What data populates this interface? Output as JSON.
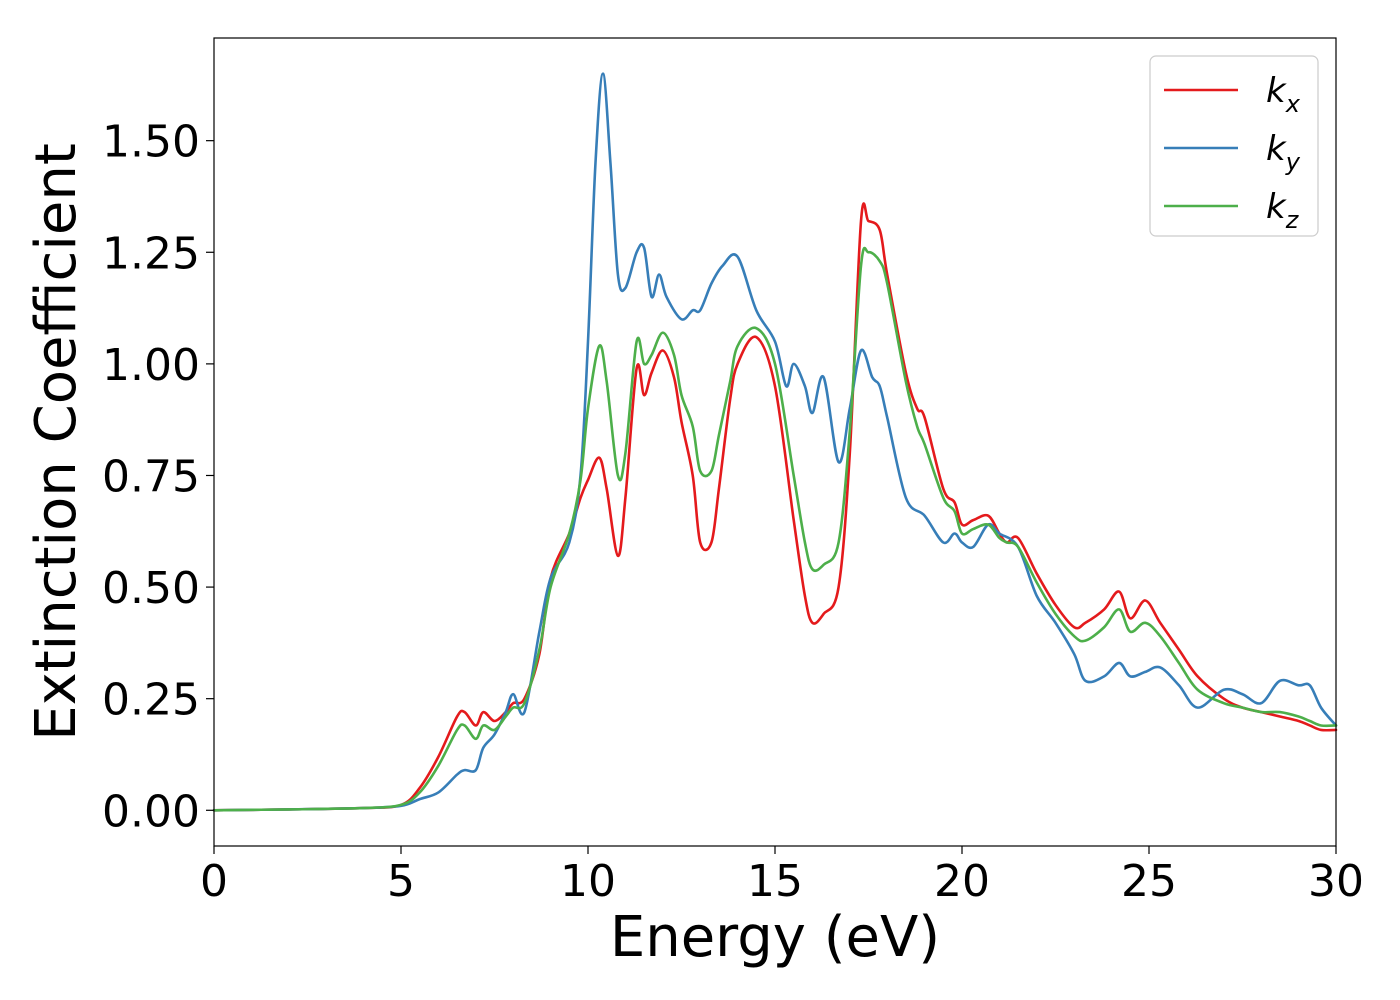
{
  "chart_data": {
    "type": "line",
    "title": "",
    "xlabel": "Energy (eV)",
    "ylabel": "Extinction Coefficient",
    "xlim": [
      0,
      30
    ],
    "ylim": [
      -0.08,
      1.73
    ],
    "xticks": [
      0,
      5,
      10,
      15,
      20,
      25,
      30
    ],
    "xtick_labels": [
      "0",
      "5",
      "10",
      "15",
      "20",
      "25",
      "30"
    ],
    "yticks": [
      0,
      0.25,
      0.5,
      0.75,
      1.0,
      1.25,
      1.5
    ],
    "ytick_labels": [
      "0.00",
      "0.25",
      "0.50",
      "0.75",
      "1.00",
      "1.25",
      "1.50"
    ],
    "grid": false,
    "legend_position": "top-right",
    "series": [
      {
        "name": "k_x",
        "base": "k",
        "sub": "x",
        "color": "#e41a1c",
        "x": [
          0,
          2,
          4,
          5,
          5.5,
          6,
          6.5,
          6.7,
          7,
          7.2,
          7.5,
          7.8,
          8,
          8.3,
          8.7,
          9,
          9.5,
          9.8,
          10,
          10.3,
          10.5,
          10.8,
          11,
          11.3,
          11.5,
          11.7,
          12,
          12.3,
          12.5,
          12.8,
          13,
          13.3,
          13.5,
          13.8,
          14,
          14.5,
          15,
          15.5,
          15.8,
          16,
          16.3,
          16.7,
          17,
          17.3,
          17.5,
          17.8,
          18,
          18.5,
          18.8,
          19,
          19.5,
          19.8,
          20,
          20.3,
          20.7,
          21,
          21.2,
          21.5,
          22,
          22.5,
          23,
          23.3,
          23.8,
          24.2,
          24.5,
          24.9,
          25.3,
          25.8,
          26.3,
          27,
          27.5,
          28,
          28.5,
          29,
          29.3,
          29.6,
          30
        ],
        "y": [
          0,
          0.002,
          0.005,
          0.012,
          0.05,
          0.12,
          0.21,
          0.22,
          0.19,
          0.22,
          0.2,
          0.22,
          0.24,
          0.25,
          0.35,
          0.52,
          0.62,
          0.7,
          0.74,
          0.79,
          0.72,
          0.57,
          0.7,
          0.99,
          0.93,
          0.98,
          1.03,
          0.97,
          0.87,
          0.75,
          0.6,
          0.6,
          0.72,
          0.92,
          1.0,
          1.06,
          0.95,
          0.65,
          0.48,
          0.42,
          0.44,
          0.5,
          0.8,
          1.32,
          1.32,
          1.3,
          1.2,
          0.98,
          0.9,
          0.88,
          0.72,
          0.69,
          0.64,
          0.65,
          0.66,
          0.62,
          0.6,
          0.61,
          0.53,
          0.46,
          0.41,
          0.42,
          0.45,
          0.49,
          0.43,
          0.47,
          0.42,
          0.36,
          0.3,
          0.25,
          0.23,
          0.22,
          0.21,
          0.2,
          0.19,
          0.18,
          0.18
        ]
      },
      {
        "name": "k_y",
        "base": "k",
        "sub": "y",
        "color": "#377eb8",
        "x": [
          0,
          2,
          4,
          5,
          5.5,
          6,
          6.5,
          6.7,
          7,
          7.2,
          7.5,
          7.8,
          8,
          8.3,
          8.7,
          9,
          9.5,
          9.8,
          10,
          10.2,
          10.4,
          10.6,
          10.8,
          11,
          11.3,
          11.5,
          11.7,
          11.9,
          12.1,
          12.5,
          12.8,
          13,
          13.3,
          13.6,
          14,
          14.5,
          15,
          15.3,
          15.5,
          15.8,
          16,
          16.3,
          16.7,
          17,
          17.3,
          17.6,
          17.8,
          18,
          18.5,
          19,
          19.5,
          19.8,
          20,
          20.3,
          20.7,
          21,
          21.5,
          22,
          22.5,
          23,
          23.3,
          23.8,
          24.2,
          24.5,
          24.9,
          25.3,
          25.8,
          26.3,
          27,
          27.5,
          28,
          28.5,
          29,
          29.3,
          29.6,
          30
        ],
        "y": [
          0,
          0.002,
          0.005,
          0.01,
          0.025,
          0.04,
          0.08,
          0.09,
          0.09,
          0.14,
          0.17,
          0.22,
          0.26,
          0.22,
          0.4,
          0.52,
          0.6,
          0.75,
          1.05,
          1.45,
          1.65,
          1.45,
          1.2,
          1.17,
          1.25,
          1.26,
          1.15,
          1.2,
          1.15,
          1.1,
          1.12,
          1.12,
          1.18,
          1.22,
          1.24,
          1.12,
          1.05,
          0.95,
          1.0,
          0.95,
          0.89,
          0.97,
          0.78,
          0.9,
          1.03,
          0.97,
          0.95,
          0.88,
          0.7,
          0.66,
          0.6,
          0.62,
          0.6,
          0.59,
          0.64,
          0.62,
          0.59,
          0.48,
          0.42,
          0.35,
          0.29,
          0.3,
          0.33,
          0.3,
          0.31,
          0.32,
          0.28,
          0.23,
          0.27,
          0.26,
          0.24,
          0.29,
          0.28,
          0.28,
          0.23,
          0.19
        ]
      },
      {
        "name": "k_z",
        "base": "k",
        "sub": "z",
        "color": "#4daf4a",
        "x": [
          0,
          2,
          4,
          5,
          5.5,
          6,
          6.5,
          6.7,
          7,
          7.2,
          7.5,
          7.8,
          8,
          8.3,
          8.7,
          9,
          9.5,
          9.8,
          10,
          10.3,
          10.5,
          10.8,
          11,
          11.3,
          11.5,
          11.7,
          12,
          12.3,
          12.5,
          12.8,
          13,
          13.3,
          13.5,
          13.8,
          14,
          14.5,
          15,
          15.5,
          15.8,
          16,
          16.3,
          16.7,
          17,
          17.3,
          17.5,
          17.8,
          18,
          18.5,
          18.8,
          19,
          19.5,
          19.8,
          20,
          20.3,
          20.7,
          21,
          21.2,
          21.5,
          22,
          22.5,
          23,
          23.3,
          23.8,
          24.2,
          24.5,
          24.9,
          25.3,
          25.8,
          26.3,
          27,
          27.5,
          28,
          28.5,
          29,
          29.3,
          29.6,
          30
        ],
        "y": [
          0,
          0.002,
          0.005,
          0.012,
          0.04,
          0.1,
          0.18,
          0.19,
          0.16,
          0.19,
          0.18,
          0.21,
          0.23,
          0.24,
          0.36,
          0.5,
          0.62,
          0.74,
          0.9,
          1.04,
          0.96,
          0.75,
          0.8,
          1.05,
          1.0,
          1.02,
          1.07,
          1.02,
          0.93,
          0.86,
          0.76,
          0.76,
          0.84,
          0.96,
          1.04,
          1.08,
          1.0,
          0.75,
          0.6,
          0.54,
          0.55,
          0.6,
          0.85,
          1.22,
          1.25,
          1.23,
          1.18,
          0.96,
          0.86,
          0.82,
          0.7,
          0.67,
          0.62,
          0.63,
          0.64,
          0.61,
          0.6,
          0.59,
          0.51,
          0.44,
          0.39,
          0.38,
          0.41,
          0.45,
          0.4,
          0.42,
          0.39,
          0.33,
          0.27,
          0.24,
          0.23,
          0.22,
          0.22,
          0.21,
          0.2,
          0.19,
          0.19
        ]
      }
    ]
  }
}
